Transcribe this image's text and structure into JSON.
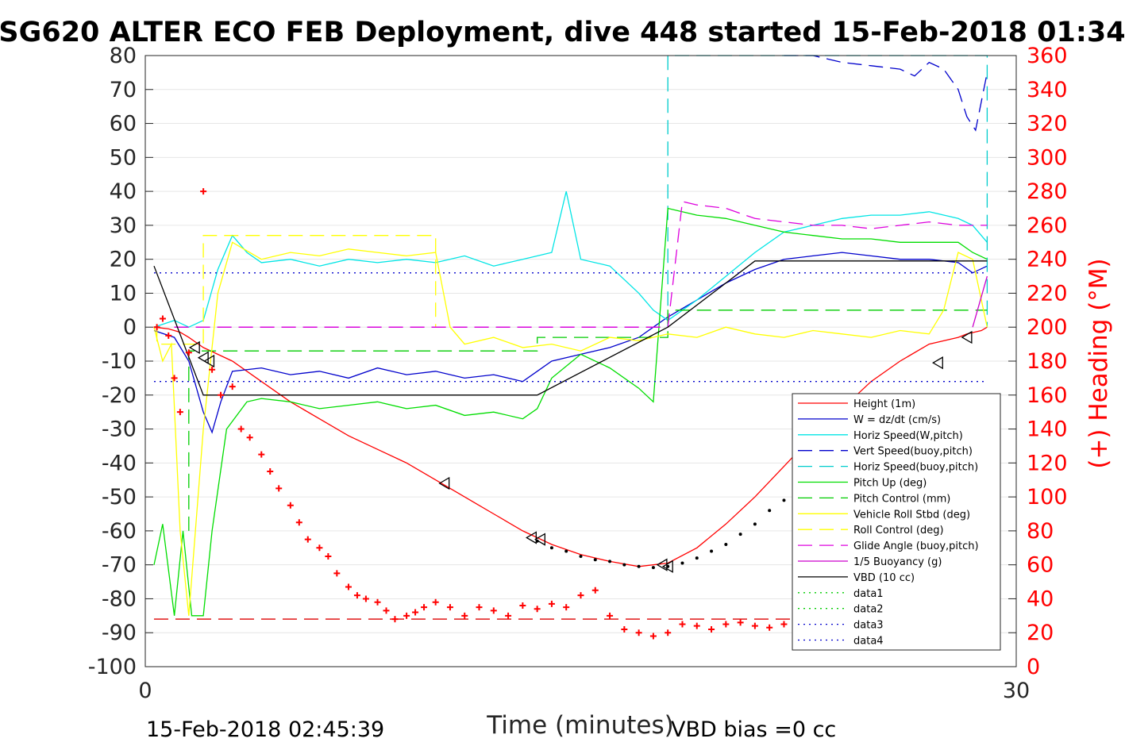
{
  "chart_data": {
    "type": "line",
    "title": "SG620 ALTER ECO FEB Deployment, dive 448 started 15-Feb-2018 01:34",
    "xlabel": "Time (minutes)",
    "ylabel_right": "(+) Heading (°M)",
    "xlim": [
      0,
      30
    ],
    "ylim": [
      -100,
      80
    ],
    "ylim_right": [
      0,
      360
    ],
    "x_ticks": [
      "0",
      "30"
    ],
    "y_ticks": [
      "80",
      "70",
      "60",
      "50",
      "40",
      "30",
      "20",
      "10",
      "0",
      "-10",
      "-20",
      "-30",
      "-40",
      "-50",
      "-60",
      "-70",
      "-80",
      "-90",
      "-100"
    ],
    "y_ticks_right": [
      "360",
      "340",
      "320",
      "300",
      "280",
      "260",
      "240",
      "220",
      "200",
      "180",
      "160",
      "140",
      "120",
      "100",
      "80",
      "60",
      "40",
      "20",
      "0"
    ],
    "grid": "horizontal",
    "legend_position": "bottom-right",
    "footer_left": "15-Feb-2018 02:45:39",
    "footer_right": "VBD bias =0 cc",
    "series": [
      {
        "name": "Height (1m)",
        "color": "#ff0000",
        "style": "solid",
        "x": [
          0.3,
          0.8,
          1.2,
          1.5,
          2.0,
          3.0,
          4.0,
          5.0,
          6.0,
          7.0,
          8.0,
          9.0,
          10.0,
          11.0,
          12.0,
          13.0,
          14.0,
          15.0,
          16.0,
          17.0,
          18.0,
          19.0,
          20.0,
          21.0,
          22.0,
          23.0,
          24.0,
          25.0,
          26.0,
          27.0,
          28.0,
          28.3,
          28.8,
          29.0
        ],
        "y": [
          0,
          -0.5,
          -1.5,
          -3,
          -6,
          -10,
          -16,
          -22,
          -27,
          -32,
          -36,
          -40,
          -45,
          -50,
          -55,
          -60,
          -64,
          -67,
          -69,
          -70.5,
          -69.5,
          -65,
          -58,
          -50,
          -41,
          -32,
          -24,
          -16,
          -10,
          -5,
          -3,
          -2,
          -1,
          0
        ]
      },
      {
        "name": "W = dz/dt (cm/s)",
        "color": "#0000cc",
        "style": "solid",
        "x": [
          0.3,
          1.0,
          1.5,
          2.0,
          2.3,
          2.6,
          3.0,
          4.0,
          5.0,
          6.0,
          7.0,
          8.0,
          9.0,
          10.0,
          11.0,
          12.0,
          13.0,
          13.5,
          14.0,
          15.0,
          16.0,
          17.0,
          17.5,
          18.0,
          19.0,
          20.0,
          21.0,
          22.0,
          23.0,
          24.0,
          25.0,
          26.0,
          27.0,
          28.0,
          28.5,
          29.0
        ],
        "y": [
          -1,
          -3,
          -10,
          -25,
          -31,
          -22,
          -13,
          -12,
          -14,
          -13,
          -15,
          -12,
          -14,
          -13,
          -15,
          -14,
          -16,
          -13,
          -10,
          -8,
          -6,
          -3,
          0,
          3,
          8,
          13,
          17,
          20,
          21,
          22,
          21,
          20,
          20,
          19,
          16,
          18
        ]
      },
      {
        "name": "Horiz Speed(W,pitch)",
        "color": "#00e5e5",
        "style": "solid",
        "x": [
          0.3,
          1.0,
          1.5,
          2.0,
          2.5,
          3.0,
          3.5,
          4.0,
          5.0,
          6.0,
          7.0,
          8.0,
          9.0,
          10.0,
          11.0,
          12.0,
          13.0,
          14.0,
          14.5,
          15.0,
          16.0,
          17.0,
          17.5,
          18.0,
          19.0,
          20.0,
          21.0,
          22.0,
          23.0,
          24.0,
          25.0,
          26.0,
          27.0,
          28.0,
          28.5,
          29.0
        ],
        "y": [
          0,
          2,
          0,
          2,
          17,
          27,
          22,
          19,
          20,
          18,
          20,
          19,
          20,
          19,
          21,
          18,
          20,
          22,
          40,
          20,
          18,
          10,
          5,
          2,
          8,
          15,
          22,
          28,
          30,
          32,
          33,
          33,
          34,
          32,
          30,
          25
        ]
      },
      {
        "name": "Vert Speed(buoy,pitch)",
        "color": "#0000cc",
        "style": "dashed",
        "x": [
          22.0,
          23.0,
          24.0,
          25.0,
          26.0,
          26.5,
          27.0,
          27.5,
          28.0,
          28.3,
          28.6,
          29.0
        ],
        "y": [
          80,
          80,
          78,
          77,
          76,
          74,
          78,
          76,
          70,
          62,
          58,
          75
        ]
      },
      {
        "name": "Horiz Speed(buoy,pitch)",
        "color": "#00cccc",
        "style": "dashed",
        "x": [
          18.0,
          18.0,
          29.0,
          29.0
        ],
        "y": [
          0,
          80,
          80,
          0
        ]
      },
      {
        "name": "Pitch Up (deg)",
        "color": "#00dd00",
        "style": "solid",
        "x": [
          0.3,
          0.6,
          1.0,
          1.3,
          1.6,
          2.0,
          2.3,
          2.8,
          3.5,
          4.0,
          5.0,
          6.0,
          7.0,
          8.0,
          9.0,
          10.0,
          11.0,
          12.0,
          13.0,
          13.5,
          14.0,
          15.0,
          16.0,
          17.0,
          17.5,
          18.0,
          19.0,
          20.0,
          21.0,
          22.0,
          23.0,
          24.0,
          25.0,
          26.0,
          27.0,
          28.0,
          28.5,
          29.0
        ],
        "y": [
          -70,
          -58,
          -85,
          -60,
          -85,
          -85,
          -60,
          -30,
          -22,
          -21,
          -22,
          -24,
          -23,
          -22,
          -24,
          -23,
          -26,
          -25,
          -27,
          -24,
          -15,
          -8,
          -12,
          -18,
          -22,
          35,
          33,
          32,
          30,
          28,
          27,
          26,
          26,
          25,
          25,
          25,
          22,
          20
        ]
      },
      {
        "name": "Pitch Control (mm)",
        "color": "#00cc00",
        "style": "dashed",
        "x": [
          1.5,
          1.5,
          2.0,
          13.5,
          13.5,
          18.0,
          18.0,
          29.0
        ],
        "y": [
          -60,
          -7,
          -7,
          -7,
          -3,
          -3,
          5,
          5
        ]
      },
      {
        "name": "Vehicle Roll Stbd (deg)",
        "color": "#ffff00",
        "style": "solid",
        "x": [
          0.3,
          0.6,
          0.9,
          1.2,
          1.5,
          2.0,
          2.5,
          3.0,
          4.0,
          5.0,
          6.0,
          7.0,
          8.0,
          9.0,
          10.0,
          10.5,
          11.0,
          12.0,
          13.0,
          14.0,
          15.0,
          16.0,
          17.0,
          18.0,
          19.0,
          20.0,
          21.0,
          22.0,
          23.0,
          24.0,
          25.0,
          26.0,
          27.0,
          27.5,
          28.0,
          28.5,
          29.0
        ],
        "y": [
          0,
          -10,
          -5,
          -60,
          -85,
          -30,
          10,
          25,
          20,
          22,
          21,
          23,
          22,
          21,
          22,
          0,
          -5,
          -3,
          -6,
          -5,
          -7,
          -3,
          -4,
          -2,
          -3,
          0,
          -2,
          -3,
          -1,
          -2,
          -3,
          -1,
          -2,
          5,
          22,
          20,
          0
        ]
      },
      {
        "name": "Roll Control (deg)",
        "color": "#ffff00",
        "style": "dashed",
        "x": [
          0.4,
          0.4,
          2.0,
          2.0,
          10.0,
          10.0
        ],
        "y": [
          0,
          -5,
          -5,
          27,
          27,
          0
        ]
      },
      {
        "name": "Glide Angle (buoy,pitch)",
        "color": "#dd00dd",
        "style": "dashed",
        "x": [
          1.0,
          18.0,
          18.5,
          19.0,
          20.0,
          21.0,
          22.0,
          23.0,
          24.0,
          25.0,
          26.0,
          27.0,
          28.0,
          29.0
        ],
        "y": [
          0,
          0,
          37,
          36,
          35,
          32,
          31,
          30,
          30,
          29,
          30,
          31,
          30,
          30
        ]
      },
      {
        "name": "1/5 Buoyancy (g)",
        "color": "#cc00cc",
        "style": "solid",
        "x": [
          28.5,
          29.0
        ],
        "y": [
          0,
          15
        ]
      },
      {
        "name": "VBD (10 cc)",
        "color": "#000000",
        "style": "solid",
        "x": [
          0.3,
          2.0,
          13.5,
          18.0,
          21.0,
          29.0
        ],
        "y": [
          18,
          -20,
          -20,
          0,
          19.5,
          19.5
        ]
      },
      {
        "name": "data1",
        "color": "#00cc00",
        "style": "dotted",
        "x": [],
        "y": []
      },
      {
        "name": "data2",
        "color": "#00cc00",
        "style": "dotted",
        "x": [],
        "y": []
      },
      {
        "name": "data3",
        "color": "#0000cc",
        "style": "dotted",
        "x": [
          0.3,
          29.0
        ],
        "y": [
          16,
          16
        ]
      },
      {
        "name": "data4",
        "color": "#0000cc",
        "style": "dotted",
        "x": [
          0.3,
          29.0
        ],
        "y": [
          -16,
          -16
        ]
      }
    ],
    "reference_lines": [
      {
        "color": "#dd0000",
        "style": "dashed",
        "axis": "left",
        "y": -86,
        "x": [
          0.3,
          29.0
        ]
      },
      {
        "color": "#8800cc",
        "style": "dashed",
        "axis": "left",
        "y": 0,
        "x": [
          1.0,
          18.0
        ]
      }
    ],
    "heading_series": {
      "color": "#ff0000",
      "marker": "+",
      "axis": "right",
      "x": [
        0.4,
        0.6,
        0.8,
        1.0,
        1.2,
        1.5,
        2.0,
        2.3,
        2.6,
        3.0,
        3.3,
        3.6,
        4.0,
        4.3,
        4.6,
        5.0,
        5.3,
        5.6,
        6.0,
        6.3,
        6.6,
        7.0,
        7.3,
        7.6,
        8.0,
        8.3,
        8.6,
        9.0,
        9.3,
        9.6,
        10.0,
        10.5,
        11.0,
        11.5,
        12.0,
        12.5,
        13.0,
        13.5,
        14.0,
        14.5,
        15.0,
        15.5,
        16.0,
        16.5,
        17.0,
        17.5,
        18.0,
        18.5,
        19.0,
        19.5,
        20.0,
        20.5,
        21.0,
        21.5,
        22.0,
        22.5,
        23.0,
        23.5,
        24.0,
        24.5,
        25.0,
        25.5,
        26.0,
        26.5,
        27.0,
        27.5,
        28.0,
        28.3,
        28.6,
        29.0
      ],
      "y": [
        200,
        205,
        195,
        170,
        150,
        185,
        280,
        175,
        160,
        165,
        140,
        135,
        125,
        115,
        105,
        95,
        85,
        75,
        70,
        65,
        55,
        47,
        42,
        40,
        38,
        33,
        28,
        30,
        32,
        35,
        38,
        35,
        30,
        35,
        33,
        30,
        36,
        34,
        37,
        35,
        42,
        45,
        30,
        22,
        20,
        18,
        20,
        25,
        24,
        22,
        25,
        26,
        24,
        23,
        25,
        24,
        22,
        20,
        21,
        20,
        22,
        20,
        18,
        20,
        22,
        24,
        40,
        42,
        60,
        38
      ]
    },
    "markers_triangles": {
      "color": "#000000",
      "x": [
        1.7,
        2.0,
        2.2,
        10.3,
        13.3,
        13.6,
        17.8,
        18.0,
        27.3,
        28.3
      ],
      "y": [
        -6,
        -9,
        -10,
        -46,
        -62,
        -62.5,
        -70,
        -70.5,
        -10.5,
        -3
      ]
    },
    "dot_markers": {
      "color": "#000000",
      "x": [
        13.5,
        14.0,
        14.5,
        15.0,
        15.5,
        16.0,
        16.5,
        17.0,
        17.5,
        18.0,
        18.5,
        19.0,
        19.5,
        20.0,
        20.5,
        21.0,
        21.5,
        22.0
      ],
      "y": [
        -63,
        -65,
        -66,
        -67.5,
        -68.5,
        -69,
        -70,
        -70.5,
        -70.8,
        -70.5,
        -69.5,
        -68,
        -66,
        -64,
        -61,
        -58,
        -54,
        -51
      ]
    }
  }
}
